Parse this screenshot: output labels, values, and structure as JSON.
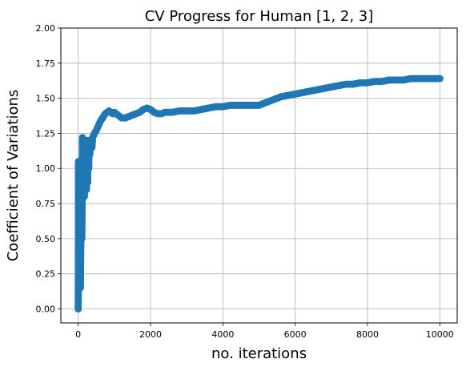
{
  "chart_data": {
    "type": "scatter",
    "title": "CV Progress for Human [1, 2, 3]",
    "xlabel": "no. iterations",
    "ylabel": "Coefficient of Variations",
    "xlim": [
      -480,
      10480
    ],
    "ylim": [
      -0.1,
      2.0
    ],
    "xticks": [
      0,
      2000,
      4000,
      6000,
      8000,
      10000
    ],
    "xtick_labels": [
      "0",
      "2000",
      "4000",
      "6000",
      "8000",
      "10000"
    ],
    "yticks": [
      0.0,
      0.25,
      0.5,
      0.75,
      1.0,
      1.25,
      1.5,
      1.75,
      2.0
    ],
    "ytick_labels": [
      "0.00",
      "0.25",
      "0.50",
      "0.75",
      "1.00",
      "1.25",
      "1.50",
      "1.75",
      "2.00"
    ],
    "grid": true,
    "color": "#1f77b4",
    "series": [
      {
        "x": [
          0,
          5,
          10,
          15,
          20,
          30,
          40,
          50,
          60,
          70,
          80,
          90,
          100,
          110,
          120,
          130,
          140,
          150,
          160,
          170,
          180,
          190,
          200,
          210,
          220,
          230,
          240,
          250,
          260,
          270,
          280,
          290,
          300,
          320,
          340,
          360,
          380,
          400,
          450,
          500,
          550,
          600,
          650,
          700,
          750,
          800,
          850,
          900,
          950,
          1000,
          1050,
          1100,
          1150,
          1200,
          1300,
          1400,
          1500,
          1600,
          1700,
          1800,
          1900,
          2000,
          2100,
          2200,
          2300,
          2400,
          2500,
          2600,
          2800,
          3000,
          3200,
          3400,
          3600,
          3800,
          4000,
          4200,
          4400,
          4600,
          4800,
          5000,
          5200,
          5400,
          5600,
          5800,
          6000,
          6200,
          6400,
          6600,
          6800,
          7000,
          7200,
          7400,
          7600,
          7800,
          8000,
          8200,
          8400,
          8600,
          8800,
          9000,
          9200,
          9400,
          9600,
          9800,
          10000
        ],
        "y": [
          0.0,
          0.27,
          1.05,
          0.62,
          0.35,
          0.95,
          0.45,
          0.9,
          0.15,
          0.42,
          0.8,
          1.0,
          0.5,
          0.85,
          1.22,
          0.95,
          1.2,
          1.05,
          0.9,
          0.8,
          1.1,
          1.0,
          0.85,
          1.15,
          0.95,
          0.85,
          1.05,
          1.15,
          0.9,
          1.2,
          1.1,
          1.0,
          1.15,
          1.1,
          1.2,
          1.18,
          1.15,
          1.22,
          1.25,
          1.27,
          1.3,
          1.33,
          1.35,
          1.37,
          1.39,
          1.4,
          1.41,
          1.4,
          1.39,
          1.4,
          1.39,
          1.38,
          1.37,
          1.36,
          1.36,
          1.37,
          1.38,
          1.39,
          1.4,
          1.42,
          1.43,
          1.42,
          1.4,
          1.39,
          1.39,
          1.4,
          1.4,
          1.4,
          1.41,
          1.41,
          1.41,
          1.42,
          1.43,
          1.44,
          1.44,
          1.45,
          1.45,
          1.45,
          1.45,
          1.45,
          1.47,
          1.49,
          1.51,
          1.52,
          1.53,
          1.54,
          1.55,
          1.56,
          1.57,
          1.58,
          1.59,
          1.6,
          1.6,
          1.61,
          1.61,
          1.62,
          1.62,
          1.63,
          1.63,
          1.63,
          1.64,
          1.64,
          1.64,
          1.64,
          1.64
        ]
      }
    ]
  }
}
